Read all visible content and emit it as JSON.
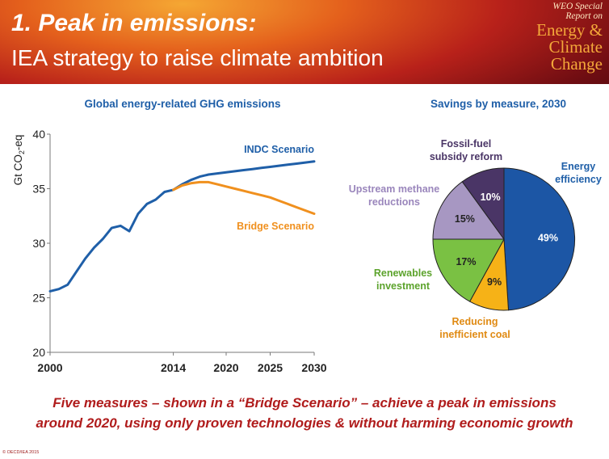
{
  "header": {
    "title": "1. Peak in emissions:",
    "subtitle": "IEA strategy to raise climate ambition",
    "report_small": "WEO Special\nReport on",
    "report_big": "Energy &\nClimate\nChange"
  },
  "footer": {
    "line1": "Five measures – shown in a “Bridge Scenario” – achieve a peak in emissions",
    "line2": "around 2020, using only proven technologies & without harming economic growth"
  },
  "copyright": "© OECD/IEA 2015",
  "colors": {
    "indc": "#1f5fa8",
    "bridge": "#f0901e",
    "title_blue": "#1f5fa8",
    "footer_red": "#b01c1c"
  },
  "chart_data": [
    {
      "type": "line",
      "title": "Global energy-related GHG emissions",
      "ylabel": "Gt CO2-eq",
      "ylim": [
        20,
        40
      ],
      "yticks": [
        20,
        25,
        30,
        35,
        40
      ],
      "xlim": [
        2000,
        2030
      ],
      "xticks": [
        "2000",
        "2014",
        "2020",
        "2025",
        "2030"
      ],
      "grid": false,
      "series": [
        {
          "name": "INDC Scenario",
          "x": [
            2000,
            2001,
            2002,
            2003,
            2004,
            2005,
            2006,
            2007,
            2008,
            2009,
            2010,
            2011,
            2012,
            2013,
            2014,
            2015,
            2016,
            2017,
            2018,
            2019,
            2020,
            2021,
            2022,
            2023,
            2024,
            2025,
            2026,
            2027,
            2028,
            2029,
            2030
          ],
          "values": [
            25.6,
            25.8,
            26.2,
            27.4,
            28.6,
            29.6,
            30.4,
            31.4,
            31.6,
            31.1,
            32.7,
            33.6,
            34.0,
            34.7,
            34.9,
            35.4,
            35.8,
            36.1,
            36.3,
            36.4,
            36.5,
            36.6,
            36.7,
            36.8,
            36.9,
            37.0,
            37.1,
            37.2,
            37.3,
            37.4,
            37.5
          ]
        },
        {
          "name": "Bridge Scenario",
          "x": [
            2014,
            2015,
            2016,
            2017,
            2018,
            2019,
            2020,
            2021,
            2022,
            2023,
            2024,
            2025,
            2026,
            2027,
            2028,
            2029,
            2030
          ],
          "values": [
            34.9,
            35.3,
            35.5,
            35.6,
            35.6,
            35.4,
            35.2,
            35.0,
            34.8,
            34.6,
            34.4,
            34.2,
            33.9,
            33.6,
            33.3,
            33.0,
            32.7
          ]
        }
      ]
    },
    {
      "type": "pie",
      "title": "Savings by measure, 2030",
      "slices": [
        {
          "name": "Energy efficiency",
          "value": 49,
          "label": "49%",
          "color": "#1c56a5",
          "label_color": "#ffffff",
          "name_color": "#1f5fa8"
        },
        {
          "name": "Reducing inefficient coal",
          "value": 9,
          "label": "9%",
          "color": "#f6b217",
          "label_color": "#222222",
          "name_color": "#e08a12"
        },
        {
          "name": "Renewables investment",
          "value": 17,
          "label": "17%",
          "color": "#7ac143",
          "label_color": "#222222",
          "name_color": "#5ca32c"
        },
        {
          "name": "Upstream methane reductions",
          "value": 15,
          "label": "15%",
          "color": "#a797c2",
          "label_color": "#222222",
          "name_color": "#9a86bc"
        },
        {
          "name": "Fossil-fuel subsidy reform",
          "value": 10,
          "label": "10%",
          "color": "#4a3566",
          "label_color": "#ffffff",
          "name_color": "#4a3566"
        }
      ]
    }
  ]
}
